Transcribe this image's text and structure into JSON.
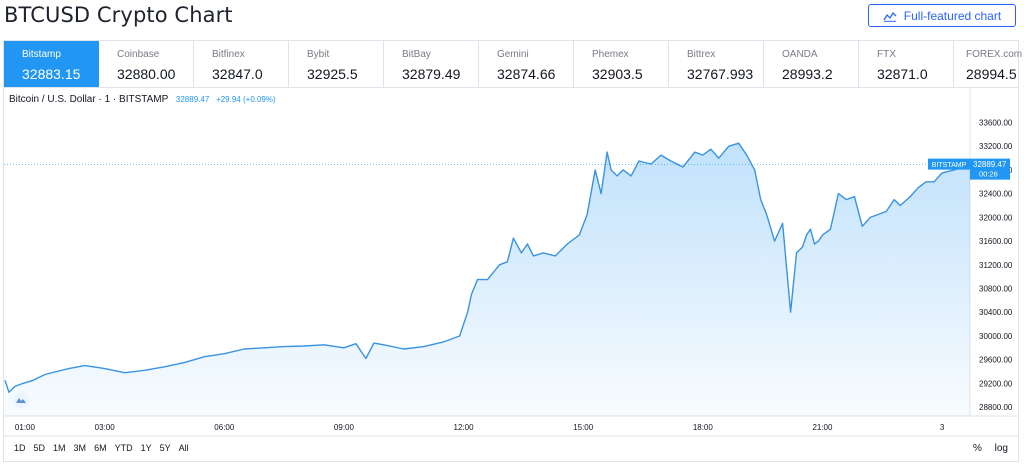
{
  "page": {
    "title": "BTCUSD Crypto Chart"
  },
  "full_chart_button": {
    "label": "Full-featured chart",
    "icon": "chart-line-icon"
  },
  "exchanges": [
    {
      "name": "Bitstamp",
      "price": "32883.15",
      "active": true
    },
    {
      "name": "Coinbase",
      "price": "32880.00"
    },
    {
      "name": "Bitfinex",
      "price": "32847.0"
    },
    {
      "name": "Bybit",
      "price": "32925.5"
    },
    {
      "name": "BitBay",
      "price": "32879.49"
    },
    {
      "name": "Gemini",
      "price": "32874.66"
    },
    {
      "name": "Phemex",
      "price": "32903.5"
    },
    {
      "name": "Bittrex",
      "price": "32767.993"
    },
    {
      "name": "OANDA",
      "price": "28993.2"
    },
    {
      "name": "FTX",
      "price": "32871.0"
    },
    {
      "name": "FOREX.com",
      "price": "28994.5"
    }
  ],
  "legend": {
    "symbol": "Bitcoin / U.S. Dollar · 1 · BITSTAMP",
    "last": "32889.47",
    "change": "+29.94 (+0.09%)"
  },
  "range_buttons": [
    "1D",
    "5D",
    "1M",
    "3M",
    "6M",
    "YTD",
    "1Y",
    "5Y",
    "All"
  ],
  "scale_toggles": {
    "percent": "%",
    "log": "log"
  },
  "colors": {
    "accent": "#2196f3",
    "line": "#3a93e0",
    "text": "#131722",
    "muted": "#787b86"
  },
  "chart_data": {
    "type": "area",
    "xlim": [
      0.5,
      24.7
    ],
    "ylim": [
      28650,
      33760
    ],
    "x_ticks": [
      {
        "x": 1,
        "label": "01:00"
      },
      {
        "x": 3,
        "label": "03:00"
      },
      {
        "x": 6,
        "label": "06:00"
      },
      {
        "x": 9,
        "label": "09:00"
      },
      {
        "x": 12,
        "label": "12:00"
      },
      {
        "x": 15,
        "label": "15:00"
      },
      {
        "x": 18,
        "label": "18:00"
      },
      {
        "x": 21,
        "label": "21:00"
      },
      {
        "x": 24,
        "label": "3"
      }
    ],
    "y_ticks": [
      28800,
      29200,
      29600,
      30000,
      30400,
      30800,
      31200,
      31600,
      32000,
      32400,
      32800,
      33200,
      33600
    ],
    "series": [
      {
        "x": [
          0.5,
          0.6,
          0.75,
          0.95,
          1.2,
          1.5,
          1.8,
          2.1,
          2.5,
          3.0,
          3.5,
          4.0,
          4.5,
          5.0,
          5.5,
          6.0,
          6.5,
          7.0,
          7.5,
          8.0,
          8.5,
          9.0,
          9.3,
          9.55,
          9.75,
          10.0,
          10.5,
          11.0,
          11.5,
          11.9,
          12.1,
          12.2,
          12.35,
          12.6,
          12.9,
          13.1,
          13.25,
          13.45,
          13.6,
          13.75,
          14.0,
          14.3,
          14.6,
          14.9,
          15.1,
          15.3,
          15.45,
          15.6,
          15.7,
          15.85,
          16.0,
          16.2,
          16.4,
          16.7,
          16.95,
          17.2,
          17.5,
          17.8,
          18.0,
          18.2,
          18.4,
          18.65,
          18.9,
          19.1,
          19.3,
          19.45,
          19.6,
          19.8,
          20.0,
          20.2,
          20.35,
          20.5,
          20.6,
          20.7,
          20.8,
          20.9,
          21.0,
          21.2,
          21.4,
          21.6,
          21.8,
          22.0,
          22.2,
          22.4,
          22.6,
          22.8,
          22.95,
          23.2,
          23.4,
          23.6,
          23.8,
          24.0,
          24.3,
          24.55,
          24.7
        ],
        "y": [
          29250,
          29050,
          29150,
          29200,
          29250,
          29350,
          29400,
          29450,
          29500,
          29450,
          29380,
          29420,
          29480,
          29550,
          29650,
          29700,
          29780,
          29800,
          29820,
          29830,
          29850,
          29800,
          29870,
          29620,
          29880,
          29850,
          29780,
          29820,
          29900,
          30000,
          30400,
          30700,
          30950,
          30950,
          31200,
          31250,
          31650,
          31400,
          31550,
          31350,
          31400,
          31350,
          31550,
          31700,
          32050,
          32800,
          32400,
          33100,
          32800,
          32700,
          32800,
          32700,
          32950,
          32900,
          33050,
          32950,
          32850,
          33100,
          33050,
          33150,
          33000,
          33200,
          33250,
          33050,
          32800,
          32300,
          32050,
          31600,
          31900,
          30400,
          31400,
          31500,
          31700,
          31800,
          31550,
          31600,
          31700,
          31800,
          32400,
          32300,
          32350,
          31850,
          32000,
          32050,
          32100,
          32300,
          32200,
          32350,
          32500,
          32600,
          32600,
          32750,
          32800,
          32850,
          32889.47
        ]
      }
    ],
    "last_value_label": "32889.47",
    "last_value_exchange": "BITSTAMP",
    "countdown": "00:26"
  }
}
